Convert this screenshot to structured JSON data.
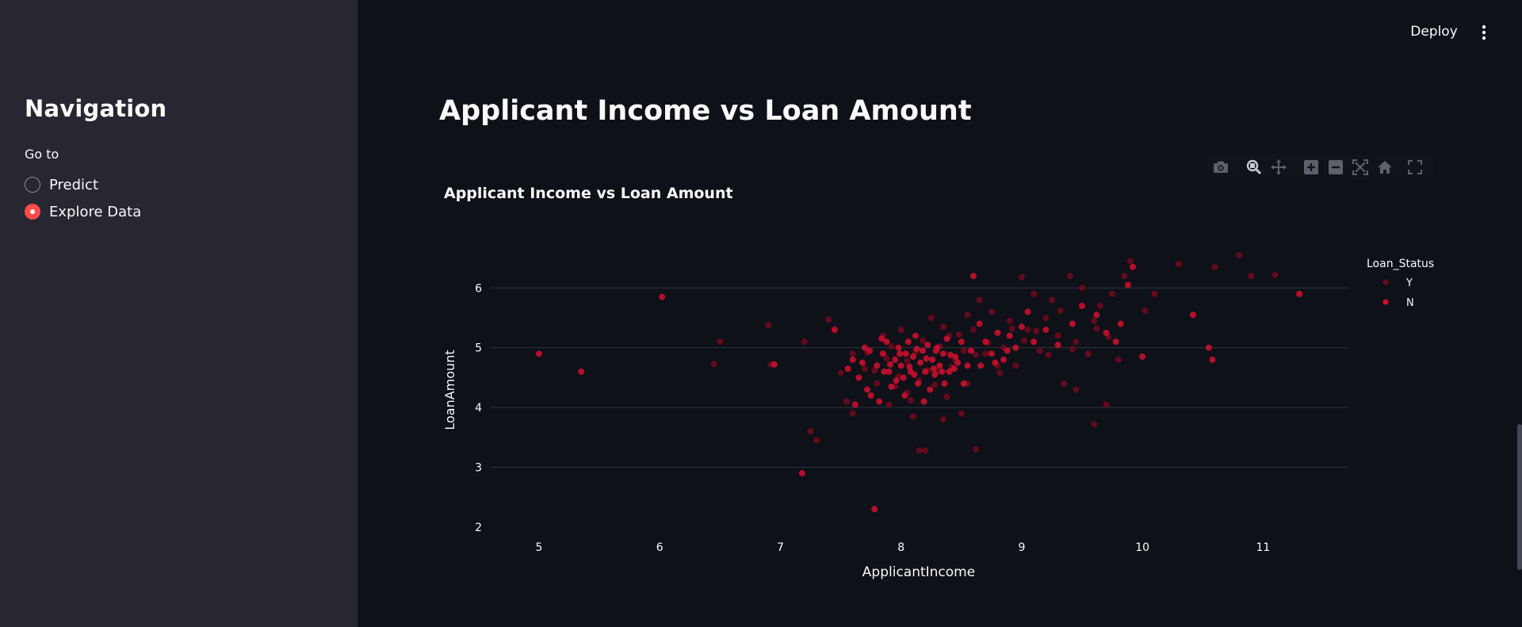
{
  "sidebar": {
    "title": "Navigation",
    "radio_label": "Go to",
    "options": [
      {
        "label": "Predict",
        "selected": false
      },
      {
        "label": "Explore Data",
        "selected": true
      }
    ]
  },
  "header": {
    "deploy_label": "Deploy",
    "menu_icon": "vertical-ellipsis-icon"
  },
  "main": {
    "title": "Applicant Income vs Loan Amount"
  },
  "modebar": {
    "icons": [
      "camera-icon",
      "zoom-icon",
      "pan-icon",
      "zoom-in-icon",
      "zoom-out-icon",
      "autoscale-icon",
      "reset-axes-icon",
      "fullscreen-icon"
    ]
  },
  "colors": {
    "accent": "#ff4b4b",
    "series_Y": "#6b0a1e",
    "series_N": "#c8102e",
    "background": "#0e1117",
    "sidebar": "#262730"
  },
  "chart_data": {
    "type": "scatter",
    "title": "Applicant Income vs Loan Amount",
    "xlabel": "ApplicantIncome",
    "ylabel": "LoanAmount",
    "xlim": [
      4.6,
      11.7
    ],
    "ylim": [
      1.8,
      6.6
    ],
    "x_ticks": [
      "5",
      "6",
      "7",
      "8",
      "9",
      "10",
      "11"
    ],
    "y_ticks": [
      "2",
      "3",
      "4",
      "5",
      "6"
    ],
    "grid": true,
    "legend": {
      "title": "Loan_Status",
      "placement": "top-right"
    },
    "series": [
      {
        "name": "Y",
        "color": "#6b0a1e",
        "points": [
          [
            6.5,
            5.1
          ],
          [
            6.45,
            4.73
          ],
          [
            6.9,
            5.38
          ],
          [
            6.92,
            4.72
          ],
          [
            7.2,
            5.1
          ],
          [
            7.25,
            3.6
          ],
          [
            7.3,
            3.45
          ],
          [
            7.4,
            5.47
          ],
          [
            7.5,
            4.58
          ],
          [
            7.55,
            4.1
          ],
          [
            7.6,
            4.9
          ],
          [
            7.6,
            3.9
          ],
          [
            7.7,
            4.65
          ],
          [
            7.8,
            4.4
          ],
          [
            7.85,
            5.2
          ],
          [
            7.9,
            4.05
          ],
          [
            8.0,
            5.3
          ],
          [
            8.05,
            4.25
          ],
          [
            8.1,
            3.85
          ],
          [
            8.15,
            3.28
          ],
          [
            8.2,
            3.28
          ],
          [
            8.25,
            5.5
          ],
          [
            8.3,
            4.6
          ],
          [
            8.35,
            3.8
          ],
          [
            8.4,
            5.2
          ],
          [
            8.45,
            4.8
          ],
          [
            8.5,
            3.9
          ],
          [
            8.55,
            4.4
          ],
          [
            8.6,
            5.3
          ],
          [
            8.62,
            3.3
          ],
          [
            8.65,
            5.8
          ],
          [
            8.7,
            4.9
          ],
          [
            8.75,
            5.6
          ],
          [
            8.8,
            4.7
          ],
          [
            8.85,
            5.0
          ],
          [
            8.9,
            5.45
          ],
          [
            8.95,
            4.7
          ],
          [
            9.0,
            6.18
          ],
          [
            9.05,
            5.3
          ],
          [
            9.1,
            5.9
          ],
          [
            9.15,
            4.95
          ],
          [
            9.2,
            5.5
          ],
          [
            9.25,
            5.8
          ],
          [
            9.3,
            5.2
          ],
          [
            9.35,
            4.4
          ],
          [
            9.4,
            6.2
          ],
          [
            9.45,
            5.1
          ],
          [
            9.5,
            6.0
          ],
          [
            9.55,
            4.9
          ],
          [
            9.6,
            3.72
          ],
          [
            9.65,
            5.7
          ],
          [
            9.7,
            4.05
          ],
          [
            9.75,
            5.9
          ],
          [
            9.8,
            4.8
          ],
          [
            9.85,
            6.2
          ],
          [
            9.9,
            6.45
          ],
          [
            10.1,
            5.9
          ],
          [
            10.3,
            6.4
          ],
          [
            10.6,
            6.35
          ],
          [
            10.8,
            6.55
          ],
          [
            10.9,
            6.2
          ],
          [
            11.1,
            6.22
          ],
          [
            9.45,
            4.3
          ],
          [
            9.6,
            5.45
          ],
          [
            8.05,
            4.78
          ],
          [
            8.12,
            4.92
          ],
          [
            8.22,
            4.62
          ],
          [
            8.32,
            5.02
          ],
          [
            7.98,
            4.52
          ],
          [
            8.42,
            4.68
          ],
          [
            8.52,
            4.95
          ],
          [
            7.88,
            4.82
          ],
          [
            8.18,
            5.12
          ],
          [
            8.28,
            4.38
          ],
          [
            8.48,
            5.22
          ],
          [
            7.78,
            4.62
          ],
          [
            8.62,
            4.88
          ],
          [
            8.72,
            5.08
          ],
          [
            8.82,
            4.58
          ],
          [
            9.02,
            5.12
          ],
          [
            9.12,
            5.28
          ],
          [
            9.22,
            4.88
          ],
          [
            8.38,
            4.18
          ],
          [
            8.08,
            4.12
          ],
          [
            7.92,
            5.02
          ],
          [
            7.72,
            4.92
          ],
          [
            8.92,
            5.32
          ],
          [
            9.32,
            5.62
          ],
          [
            9.42,
            4.98
          ],
          [
            9.62,
            5.32
          ],
          [
            9.72,
            5.18
          ],
          [
            10.02,
            5.62
          ],
          [
            8.55,
            5.55
          ],
          [
            8.35,
            5.35
          ],
          [
            8.15,
            4.45
          ],
          [
            7.95,
            4.35
          ]
        ]
      },
      {
        "name": "N",
        "color": "#c8102e",
        "points": [
          [
            5.0,
            4.9
          ],
          [
            5.35,
            4.6
          ],
          [
            6.02,
            5.85
          ],
          [
            6.95,
            4.72
          ],
          [
            7.18,
            2.9
          ],
          [
            7.45,
            5.3
          ],
          [
            7.6,
            4.8
          ],
          [
            7.65,
            4.5
          ],
          [
            7.7,
            5.0
          ],
          [
            7.75,
            4.2
          ],
          [
            7.78,
            2.3
          ],
          [
            7.8,
            4.7
          ],
          [
            7.85,
            4.9
          ],
          [
            7.88,
            5.1
          ],
          [
            7.9,
            4.6
          ],
          [
            7.92,
            4.35
          ],
          [
            7.95,
            4.8
          ],
          [
            7.98,
            5.0
          ],
          [
            8.0,
            4.7
          ],
          [
            8.02,
            4.5
          ],
          [
            8.04,
            4.9
          ],
          [
            8.06,
            5.1
          ],
          [
            8.08,
            4.6
          ],
          [
            8.1,
            4.85
          ],
          [
            8.12,
            5.2
          ],
          [
            8.14,
            4.4
          ],
          [
            8.16,
            4.75
          ],
          [
            8.18,
            4.95
          ],
          [
            8.2,
            4.6
          ],
          [
            8.22,
            5.05
          ],
          [
            8.24,
            4.3
          ],
          [
            8.26,
            4.8
          ],
          [
            8.28,
            4.55
          ],
          [
            8.3,
            5.0
          ],
          [
            8.32,
            4.7
          ],
          [
            8.35,
            4.9
          ],
          [
            8.38,
            5.15
          ],
          [
            8.4,
            4.6
          ],
          [
            8.45,
            4.85
          ],
          [
            8.5,
            5.1
          ],
          [
            8.55,
            4.7
          ],
          [
            8.6,
            6.2
          ],
          [
            8.65,
            5.4
          ],
          [
            8.7,
            5.1
          ],
          [
            8.75,
            4.9
          ],
          [
            8.8,
            5.25
          ],
          [
            8.85,
            4.8
          ],
          [
            8.9,
            5.2
          ],
          [
            8.95,
            5.0
          ],
          [
            9.0,
            5.35
          ],
          [
            9.05,
            5.6
          ],
          [
            9.1,
            5.1
          ],
          [
            9.2,
            5.3
          ],
          [
            9.3,
            5.05
          ],
          [
            9.42,
            5.4
          ],
          [
            9.5,
            5.7
          ],
          [
            9.62,
            5.55
          ],
          [
            9.7,
            5.25
          ],
          [
            9.78,
            5.1
          ],
          [
            9.82,
            5.4
          ],
          [
            9.88,
            6.05
          ],
          [
            9.92,
            6.35
          ],
          [
            10.0,
            4.85
          ],
          [
            10.42,
            5.55
          ],
          [
            10.55,
            5.0
          ],
          [
            10.58,
            4.8
          ],
          [
            11.3,
            5.9
          ],
          [
            7.62,
            4.05
          ],
          [
            7.72,
            4.3
          ],
          [
            7.82,
            4.1
          ],
          [
            7.86,
            4.6
          ],
          [
            7.96,
            4.45
          ],
          [
            8.03,
            4.2
          ],
          [
            8.11,
            4.55
          ],
          [
            8.19,
            4.1
          ],
          [
            8.27,
            4.65
          ],
          [
            8.36,
            4.4
          ],
          [
            8.44,
            4.65
          ],
          [
            8.52,
            4.4
          ],
          [
            8.58,
            4.95
          ],
          [
            8.66,
            4.7
          ],
          [
            8.78,
            4.75
          ],
          [
            8.88,
            4.95
          ],
          [
            7.56,
            4.65
          ],
          [
            7.68,
            4.75
          ],
          [
            7.74,
            4.95
          ],
          [
            7.84,
            5.15
          ],
          [
            7.91,
            4.72
          ],
          [
            7.99,
            4.9
          ],
          [
            8.07,
            4.68
          ],
          [
            8.13,
            4.98
          ],
          [
            8.21,
            4.82
          ],
          [
            8.29,
            4.95
          ],
          [
            8.34,
            4.6
          ],
          [
            8.41,
            4.88
          ],
          [
            8.47,
            4.75
          ]
        ]
      }
    ]
  }
}
